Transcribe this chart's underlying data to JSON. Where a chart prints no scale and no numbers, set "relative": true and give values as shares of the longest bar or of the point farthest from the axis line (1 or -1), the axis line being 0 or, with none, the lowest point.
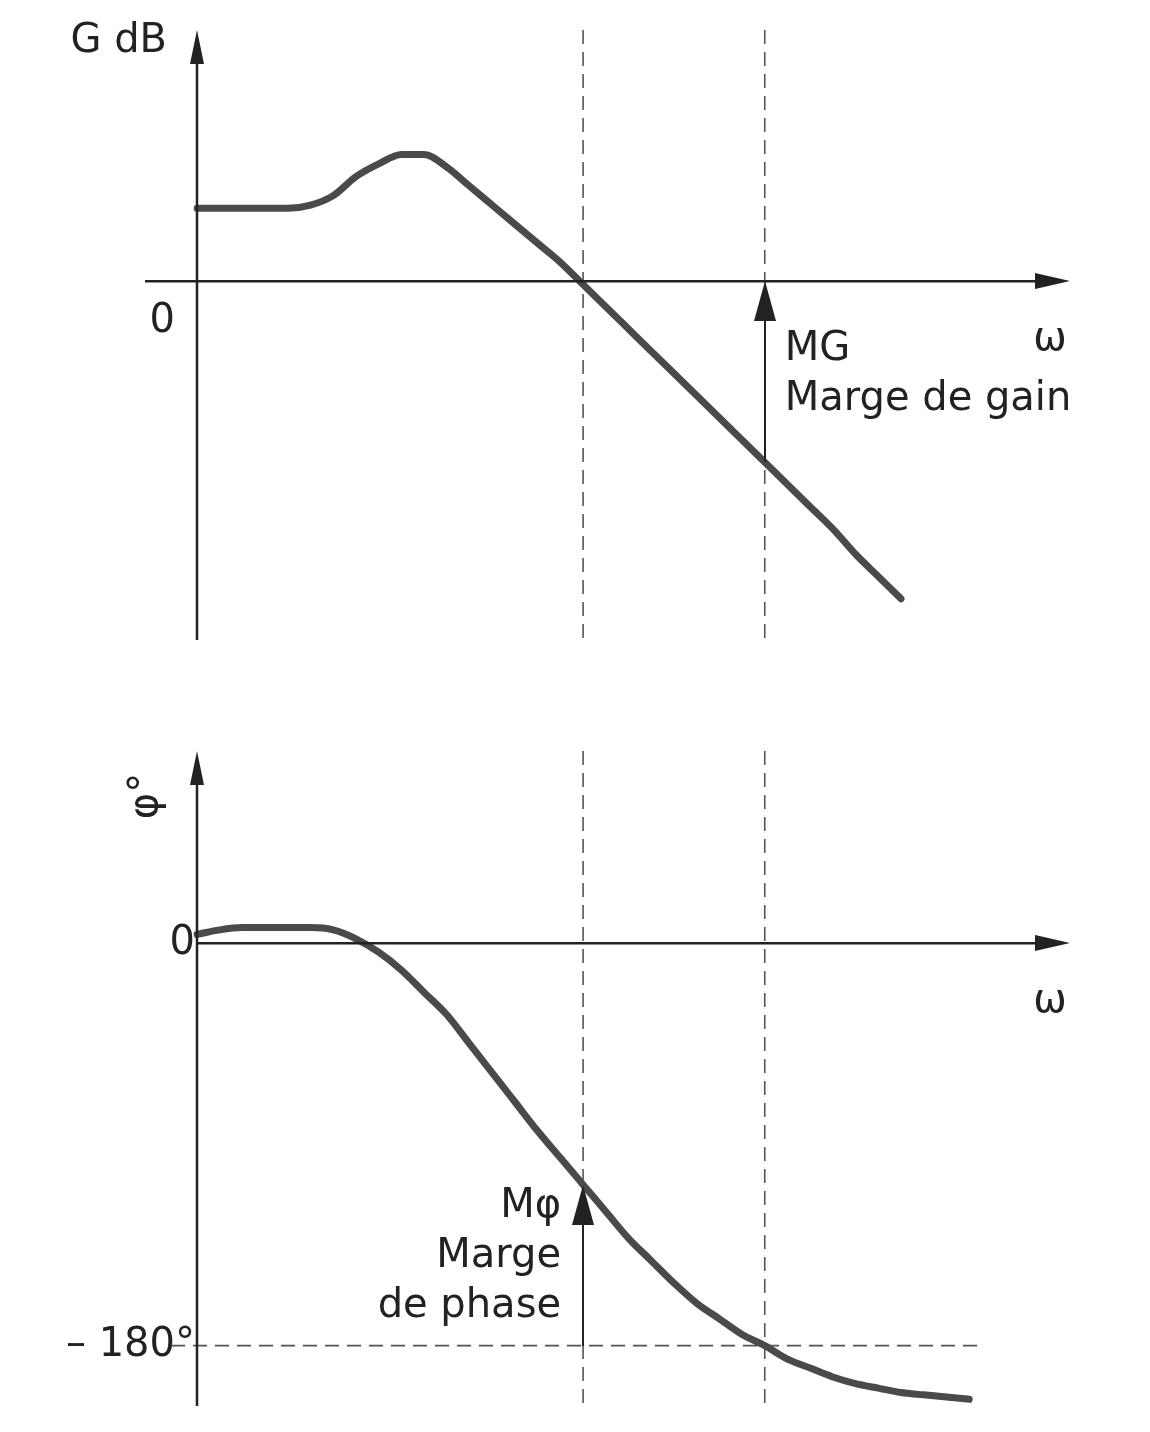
{
  "chart_data": [
    {
      "type": "line",
      "relative": true,
      "ylabel": "G dB",
      "xlabel": "ω",
      "tick_labels": false,
      "categories": [
        null,
        null,
        null,
        null,
        null,
        null,
        null,
        null,
        null,
        null,
        null,
        null,
        null,
        null,
        null,
        null,
        null,
        null,
        null,
        null,
        null,
        null,
        null,
        null,
        null,
        null,
        null,
        null,
        null,
        null,
        null,
        null,
        null,
        null,
        null,
        null,
        null,
        null,
        null
      ],
      "series": [
        {
          "color": "#4a4a4a",
          "values": [
            0.23,
            0.23,
            0.23,
            0.23,
            0.23,
            0.24,
            0.27,
            0.33,
            0.37,
            0.4,
            0.4,
            0.36,
            0.3,
            0.24,
            0.18,
            0.12,
            0.06,
            -0.01,
            -0.08,
            -0.15,
            -0.22,
            -0.29,
            -0.36,
            -0.43,
            -0.5,
            -0.57,
            -0.64,
            -0.71,
            -0.78,
            -0.86,
            -0.93,
            -1,
            null,
            null,
            null,
            null,
            null,
            null,
            null
          ]
        }
      ],
      "annotations": [
        "0",
        "MG",
        "Marge de gain"
      ],
      "grid": false,
      "legend": false,
      "marker": "none",
      "line_style": "solid"
    },
    {
      "type": "line",
      "ylabel": "φ°",
      "xlabel": "ω",
      "tick_labels": "y",
      "ylim": [
        -207,
        86
      ],
      "yticks": [
        0,
        {
          "value": -180,
          "label": "– 180°"
        }
      ],
      "categories": [
        null,
        null,
        null,
        null,
        null,
        null,
        null,
        null,
        null,
        null,
        null,
        null,
        null,
        null,
        null,
        null,
        null,
        null,
        null,
        null,
        null,
        null,
        null,
        null,
        null,
        null,
        null,
        null,
        null,
        null,
        null,
        null,
        null,
        null,
        null,
        null,
        null,
        null,
        null
      ],
      "series": [
        {
          "color": "#4a4a4a",
          "values": [
            4,
            6,
            7,
            7,
            7,
            7,
            6,
            2,
            -4,
            -12,
            -22,
            -32,
            -45,
            -58,
            -71,
            -84,
            -96,
            -108,
            -120,
            -132,
            -142,
            -152,
            -161,
            -168,
            -175,
            -180,
            -186,
            -190,
            -194,
            -197,
            -199,
            -201,
            -202,
            -203,
            -204,
            null,
            null,
            null,
            null
          ]
        }
      ],
      "ref_lines": [
        {
          "axis": "y",
          "value": -180,
          "line_style": "dashed"
        }
      ],
      "annotations": [
        "Mφ",
        "Marge",
        "de phase"
      ],
      "grid": false,
      "legend": false,
      "marker": "none",
      "line_style": "solid"
    }
  ]
}
